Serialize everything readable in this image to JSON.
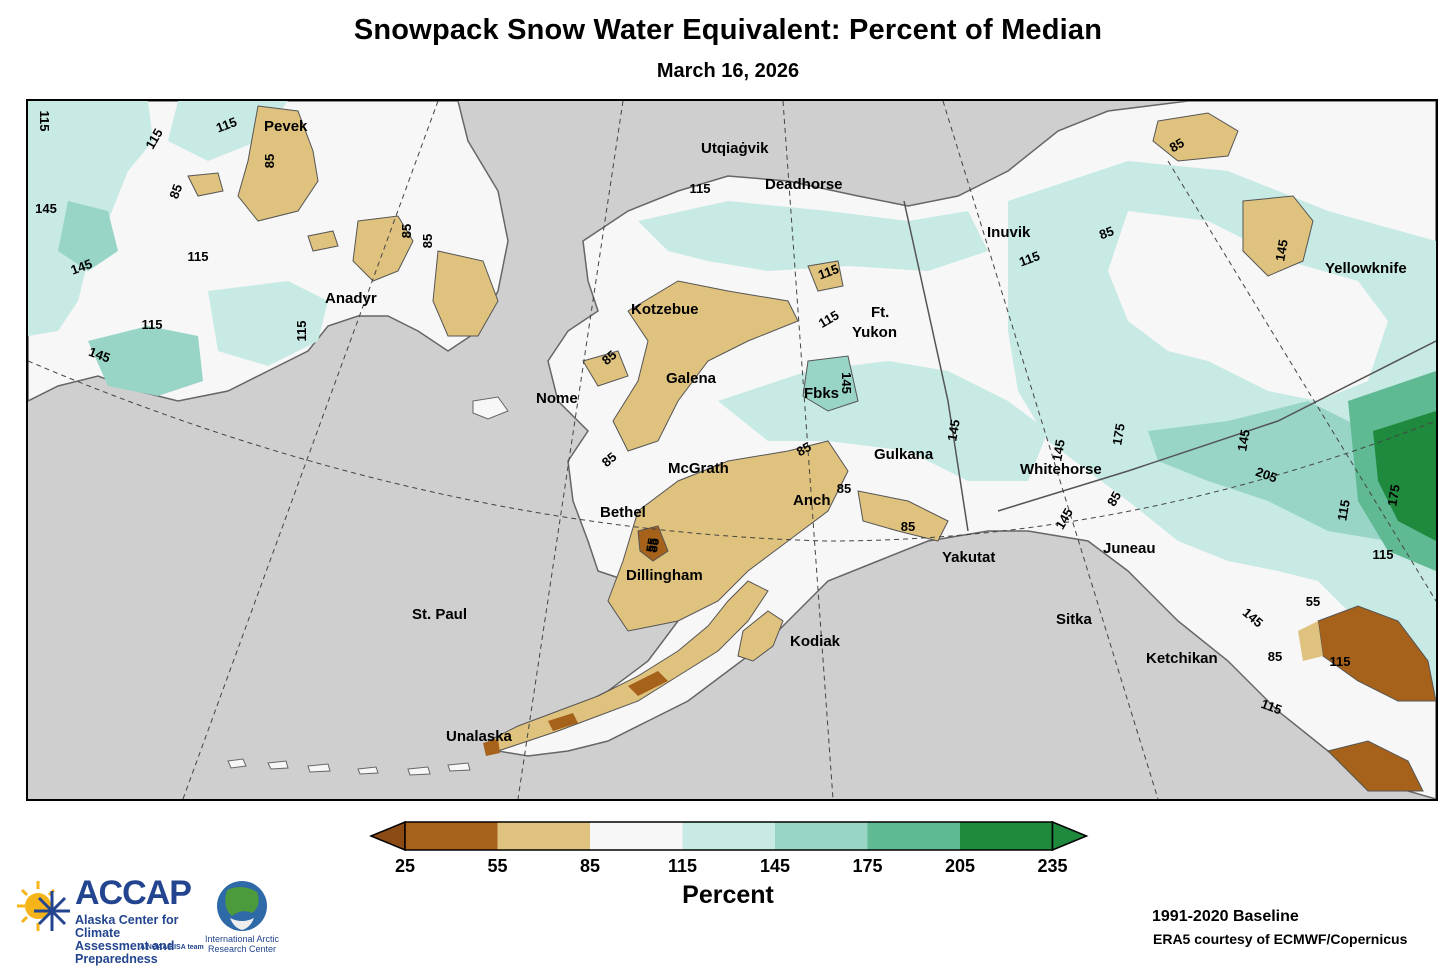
{
  "title": "Snowpack Snow Water Equivalent: Percent of Median",
  "subtitle": "March 16, 2026",
  "map": {
    "colors": {
      "ocean": "#cfcfcf",
      "c25_55": "#a6611a",
      "c55_85": "#dfc27d",
      "c85_115": "#f7f7f7",
      "c115_145": "#c7eae5",
      "c145_175": "#98d5c7",
      "c175_205": "#5fba93",
      "c205_235": "#1f8a3e"
    },
    "cities": [
      {
        "name": "Pevek"
      },
      {
        "name": "Anadyr"
      },
      {
        "name": "Utqiaġvik"
      },
      {
        "name": "Deadhorse"
      },
      {
        "name": "Inuvik"
      },
      {
        "name": "Yellowknife"
      },
      {
        "name": "Kotzebue"
      },
      {
        "name": "Ft."
      },
      {
        "name": "Yukon"
      },
      {
        "name": "Galena"
      },
      {
        "name": "Nome"
      },
      {
        "name": "Fbks"
      },
      {
        "name": "McGrath"
      },
      {
        "name": "Gulkana"
      },
      {
        "name": "Whitehorse"
      },
      {
        "name": "Bethel"
      },
      {
        "name": "Anch"
      },
      {
        "name": "Yakutat"
      },
      {
        "name": "Juneau"
      },
      {
        "name": "Dillingham"
      },
      {
        "name": "St. Paul"
      },
      {
        "name": "Kodiak"
      },
      {
        "name": "Sitka"
      },
      {
        "name": "Ketchikan"
      },
      {
        "name": "Unalaska"
      }
    ],
    "contour_labels": [
      "115",
      "115",
      "115",
      "85",
      "85",
      "85",
      "85",
      "145",
      "145",
      "115",
      "115",
      "115",
      "145",
      "115",
      "115",
      "85",
      "85",
      "115",
      "85",
      "85",
      "115",
      "145",
      "85",
      "85",
      "85",
      "85",
      "55",
      "145",
      "145",
      "145",
      "175",
      "145",
      "205",
      "175",
      "115",
      "145",
      "115",
      "85",
      "55",
      "115",
      "85",
      "115",
      "145"
    ]
  },
  "legend": {
    "ticks": [
      "25",
      "55",
      "85",
      "115",
      "145",
      "175",
      "205",
      "235"
    ],
    "title": "Percent",
    "colors": [
      "#a6611a",
      "#dfc27d",
      "#f7f7f7",
      "#c7eae5",
      "#98d5c7",
      "#5fba93",
      "#1f8a3e"
    ],
    "under_color": "#8c4a14",
    "over_color": "#1f8a3e"
  },
  "footer": {
    "baseline": "1991-2020 Baseline",
    "credit": "ERA5 courtesy of ECMWF/Copernicus"
  },
  "logos": {
    "accap_word": "ACCAP",
    "accap_sub1": "Alaska Center for Climate",
    "accap_sub2": "Assessment and Preparedness",
    "accap_tag": "A NOAA RISA team",
    "iarc_line1": "International Arctic",
    "iarc_line2": "Research Center"
  }
}
